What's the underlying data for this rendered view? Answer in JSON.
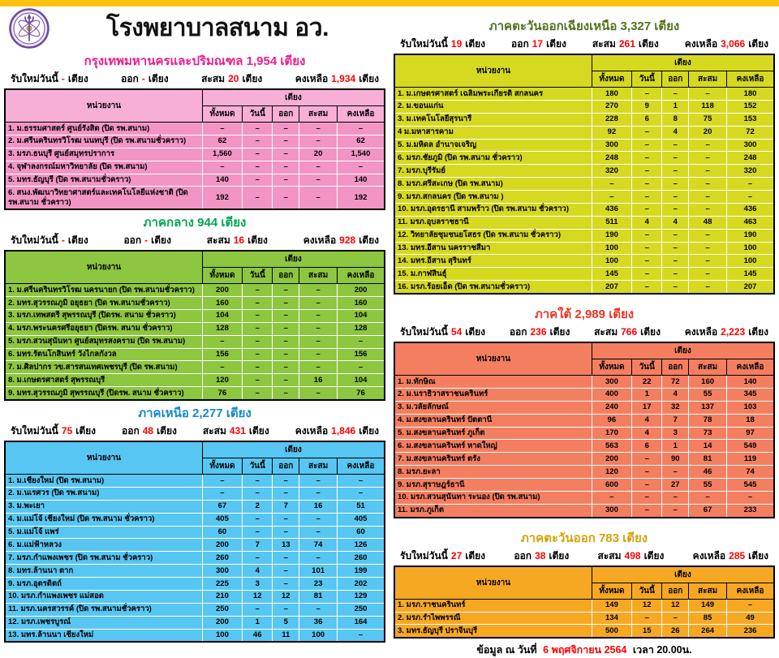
{
  "header": {
    "title": "โรงพยาบาลสนาม อว.",
    "top_bar_color": "#FFC20E",
    "logo": "ministry-hesi-emblem",
    "logo_colors": {
      "ring": "#6A4C9C",
      "fill": "#EFE4F7",
      "accent": "#F2C011"
    }
  },
  "labels": {
    "stat_new": "รับใหม่วันนี้",
    "stat_out": "ออก",
    "stat_cum": "สะสม",
    "stat_remain": "คงเหลือ",
    "unit": "เตียง",
    "col_agency": "หน่วยงาน",
    "col_beds": "เตียง",
    "col_total": "ทั้งหมด",
    "col_today": "วันนี้",
    "col_out": "ออก",
    "col_cum": "สะสม",
    "col_remain": "คงเหลือ",
    "stat_value_color": "#FF0000"
  },
  "sections": [
    {
      "id": "bangkok",
      "title": "กรุงเทพมหานครและปริมณฑล  1,954 เตียง",
      "colors": {
        "title": "#EC1D8D",
        "row": "#F295C4",
        "head": "#F7AFD5"
      },
      "stats": {
        "new": "-",
        "out": "-",
        "cum": "20",
        "remain": "1,934"
      },
      "rows": [
        [
          "1. ม.ธรรมศาสตร์ ศูนย์รังสิต (ปิด รพ.สนาม)",
          "–",
          "–",
          "–",
          "–",
          "–"
        ],
        [
          "2. ม.ศรีนครินทรวิโรฒ นนทบุรี (ปิด รพ.สนามชั่วคราว)",
          "62",
          "–",
          "–",
          "–",
          "62"
        ],
        [
          "3. มรภ.ธนบุรี ศูนย์สมุทรปราการ",
          "1,560",
          "–",
          "–",
          "20",
          "1,540"
        ],
        [
          "4. จุฬาลงกรณ์มหาวิทยาลัย  (ปิด รพ.สนาม)",
          "–",
          "–",
          "–",
          "–",
          "–"
        ],
        [
          "5. มทร.ธัญบุรี (ปิด รพ.สนามชั่วคราว)",
          "140",
          "–",
          "–",
          "–",
          "140"
        ],
        [
          "6. สนง.พัฒนาวิทยาศาสตร์และเทคโนโลยีแห่งชาติ (ปิด รพ.สนาม ชั่วคราว)",
          "192",
          "–",
          "–",
          "–",
          "192"
        ]
      ]
    },
    {
      "id": "central",
      "title": "ภาคกลาง  944 เตียง",
      "colors": {
        "title": "#00A651",
        "row": "#8DC63F",
        "head": "#8DC63F"
      },
      "stats": {
        "new": "-",
        "out": "-",
        "cum": "16",
        "remain": "928"
      },
      "rows": [
        [
          "1. ม.ศรีนครินทรวิโรฒ นครนายก  (ปิด รพ.สนามชั่วคราว)",
          "200",
          "–",
          "–",
          "–",
          "200"
        ],
        [
          "2. มทร.สุวรรณภูมิ อยุธยา  (ปิด รพ.สนามชั่วคราว)",
          "160",
          "–",
          "–",
          "–",
          "160"
        ],
        [
          "3. มรภ.เทพสตรี สุพรรณบุรี (ปิดรพ. สนาม ชั่วคราว)",
          "104",
          "–",
          "–",
          "–",
          "104"
        ],
        [
          "4. มรภ.พระนครศรีอยุธยา  (ปิดรพ. สนาม ชั่วคราว)",
          "128",
          "–",
          "–",
          "–",
          "128"
        ],
        [
          "5. มรภ.สวนสุนันทา ศูนย์สมุทรสงคราม  (ปิด รพ.สนาม)",
          "–",
          "–",
          "–",
          "–",
          "–"
        ],
        [
          "6. มทร.รัตนโกสินทร์  วังไกลกังวล",
          "156",
          "–",
          "–",
          "–",
          "156"
        ],
        [
          "7. ม.ศิลปากร วข.สารสนเทศเพชรบุรี  (ปิด รพ.สนาม)",
          "–",
          "–",
          "–",
          "–",
          "–"
        ],
        [
          "8. ม.เกษตรศาสตร์  สุพรรณบุรี",
          "120",
          "–",
          "–",
          "16",
          "104"
        ],
        [
          "9. มทร.สุวรรณภูมิ  สุพรรณบุรี (ปิดรพ. สนาม ชั่วคราว)",
          "76",
          "–",
          "–",
          "–",
          "76"
        ]
      ]
    },
    {
      "id": "north",
      "title": "ภาคเหนือ  2,277 เตียง",
      "colors": {
        "title": "#1688C9",
        "row": "#58C6F2",
        "head": "#58C6F2"
      },
      "stats": {
        "new": "75",
        "out": "48",
        "cum": "431",
        "remain": "1,846"
      },
      "rows": [
        [
          "1. ม.เชียงใหม่   (ปิด รพ.สนาม)",
          "–",
          "–",
          "–",
          "–",
          "–"
        ],
        [
          "2. ม.นเรศวร  (ปิด รพ.สนาม)",
          "–",
          "–",
          "–",
          "–",
          "–"
        ],
        [
          "3. ม.พะเยา",
          "67",
          "2",
          "7",
          "16",
          "51"
        ],
        [
          "4. ม.แม่โจ้  เชียงใหม่ (ปิด รพ.สนาม ชั่วคราว)",
          "405",
          "–",
          "–",
          "–",
          "405"
        ],
        [
          "5. ม.แม่โจ้  แพร่",
          "60",
          "–",
          "–",
          "–",
          "60"
        ],
        [
          "6. ม.แม่ฟ้าหลวง",
          "200",
          "7",
          "13",
          "74",
          "126"
        ],
        [
          "7. มรภ.กำแพงเพชร  (ปิด รพ.สนาม ชั่วคราว)",
          "260",
          "–",
          "–",
          "–",
          "260"
        ],
        [
          "8. มทร.ล้านนา  ตาก",
          "300",
          "4",
          "–",
          "101",
          "199"
        ],
        [
          "9. มรภ.อุตรดิตถ์",
          "225",
          "3",
          "–",
          "23",
          "202"
        ],
        [
          "10. มรภ.กำแพงเพชร  แม่สอด",
          "210",
          "12",
          "12",
          "81",
          "129"
        ],
        [
          "11. มรภ.นครสวรรค์  (ปิด รพ.สนามชั่วคราว)",
          "250",
          "–",
          "–",
          "–",
          "250"
        ],
        [
          "12. มรภ.เพชรบูรณ์",
          "200",
          "1",
          "5",
          "36",
          "164"
        ],
        [
          "13. มทร.ล้านนา  เชียงใหม่",
          "100",
          "46",
          "11",
          "100",
          "–"
        ]
      ]
    },
    {
      "id": "northeast",
      "title": "ภาคตะวันออกเฉียงเหนือ  3,327 เตียง",
      "colors": {
        "title": "#55701E",
        "row": "#D6D920",
        "head": "#D6D920"
      },
      "stats": {
        "new": "19",
        "out": "17",
        "cum": "261",
        "remain": "3,066"
      },
      "rows": [
        [
          "1. ม.เกษตรศาสตร์ เฉลิมพระเกียรติ สกลนคร",
          "180",
          "–",
          "–",
          "–",
          "180"
        ],
        [
          "2. ม.ขอนแก่น",
          "270",
          "9",
          "1",
          "118",
          "152"
        ],
        [
          "3. ม.เทคโนโลยีสุรนารี",
          "228",
          "6",
          "8",
          "75",
          "153"
        ],
        [
          "4 ม.มหาสารคาม",
          "92",
          "–",
          "4",
          "20",
          "72"
        ],
        [
          "5. ม.มหิดล  อำนาจเจริญ",
          "300",
          "–",
          "–",
          "–",
          "300"
        ],
        [
          "6. มรภ.ชัยภูมิ   (ปิด รพ.สนาม  ชั่วคราว)",
          "248",
          "–",
          "–",
          "–",
          "248"
        ],
        [
          "7. มรภ.บุรีรัมย์",
          "320",
          "–",
          "–",
          "–",
          "320"
        ],
        [
          "8. มรภ.ศรีสะเกษ   (ปิด รพ.สนาม)",
          "–",
          "–",
          "–",
          "–",
          "–"
        ],
        [
          "9. มรภ.สกลนคร   (ปิด รพ.สนาม )",
          "–",
          "–",
          "–",
          "–",
          "–"
        ],
        [
          "10. มรภ.อุดรธานี  สามพร้าว (ปิด รพ.สนาม ชั่วคราว)",
          "436",
          "–",
          "–",
          "–",
          "436"
        ],
        [
          "11. มรภ.อุบลราชธานี",
          "511",
          "4",
          "4",
          "48",
          "463"
        ],
        [
          "12. วิทยาลัยชุมชนยโสธร  (ปิด รพ.สนาม ชั่วคราว)",
          "190",
          "–",
          "–",
          "–",
          "190"
        ],
        [
          "13. มทร.อีสาน  นครราชสีมา",
          "100",
          "–",
          "–",
          "–",
          "100"
        ],
        [
          "14. มทร.อีสาน  สุรินทร์",
          "100",
          "–",
          "–",
          "–",
          "100"
        ],
        [
          "15. ม.กาฬสินธุ์",
          "145",
          "–",
          "–",
          "–",
          "145"
        ],
        [
          "16. มรภ.ร้อยเอ็ด  (ปิด รพ.สนามชั่วคราว)",
          "207",
          "–",
          "–",
          "–",
          "207"
        ]
      ]
    },
    {
      "id": "south",
      "title": "ภาคใต้  2,989 เตียง",
      "colors": {
        "title": "#EE3524",
        "row": "#F47E60",
        "head": "#F47E60"
      },
      "stats": {
        "new": "54",
        "out": "236",
        "cum": "766",
        "remain": "2,223"
      },
      "rows": [
        [
          "1. ม.ทักษิณ",
          "300",
          "22",
          "72",
          "160",
          "140"
        ],
        [
          "2. ม.นราธิวาสราชนครินทร์",
          "400",
          "1",
          "4",
          "55",
          "345"
        ],
        [
          "3. ม.วลัยลักษณ์",
          "240",
          "17",
          "32",
          "137",
          "103"
        ],
        [
          "4. ม.สงขลานครินทร์ ปัตตานี",
          "96",
          "4",
          "7",
          "78",
          "18"
        ],
        [
          "5. ม.สงขลานครินทร์ ภูเก็ต",
          "170",
          "4",
          "3",
          "73",
          "97"
        ],
        [
          "6. ม.สงขลานครินทร์ หาดใหญ่",
          "563",
          "6",
          "1",
          "14",
          "549"
        ],
        [
          "7. ม.สงขลานครินทร์ ตรัง",
          "200",
          "–",
          "90",
          "81",
          "119"
        ],
        [
          "8. มรภ.ยะลา",
          "120",
          "–",
          "–",
          "46",
          "74"
        ],
        [
          "9. มรภ.สุราษฎร์ธานี",
          "600",
          "–",
          "27",
          "55",
          "545"
        ],
        [
          "10. มรภ.สวนสุนันทา ระนอง (ปิด รพ.สนาม)",
          "–",
          "–",
          "–",
          "–",
          "–"
        ],
        [
          "11. มรภ.ภูเก็ต",
          "300",
          "–",
          "–",
          "67",
          "233"
        ]
      ]
    },
    {
      "id": "east",
      "title": "ภาคตะวันออก  783 เตียง",
      "colors": {
        "title": "#D1A40A",
        "row": "#F7A823",
        "head": "#F7A823"
      },
      "stats": {
        "new": "27",
        "out": "38",
        "cum": "498",
        "remain": "285"
      },
      "rows": [
        [
          "1. มรภ.ราชนครินทร์",
          "149",
          "12",
          "12",
          "149",
          "–"
        ],
        [
          "2. มรภ.รำไพพรรณี",
          "134",
          "–",
          "–",
          "85",
          "49"
        ],
        [
          "3. มทร.ธัญบุรี  ปราจีนบุรี",
          "500",
          "15",
          "26",
          "264",
          "236"
        ]
      ]
    }
  ],
  "footer": {
    "prefix": "ข้อมูล ณ วันที่",
    "date": "6 พฤศจิกายน 2564",
    "suffix": "เวลา 20.00น."
  }
}
